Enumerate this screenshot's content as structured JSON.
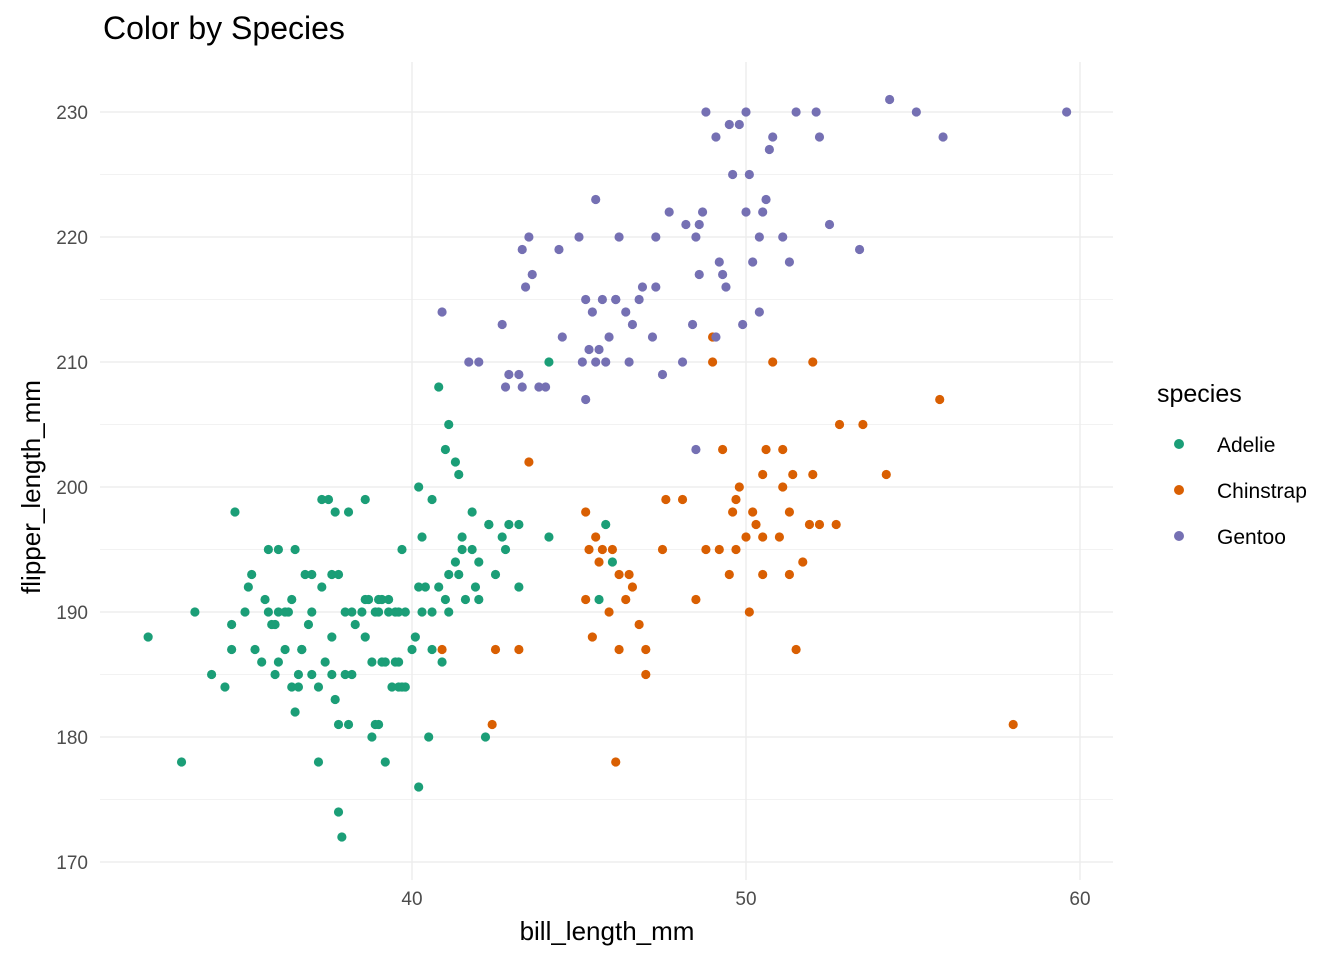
{
  "chart_data": {
    "type": "scatter",
    "title": "Color by Species",
    "xlabel": "bill_length_mm",
    "ylabel": "flipper_length_mm",
    "xlim": [
      31.0,
      61.0
    ],
    "ylim": [
      169.0,
      234.0
    ],
    "xticks": [
      40,
      50,
      60
    ],
    "yticks": [
      170,
      180,
      190,
      200,
      210,
      220,
      230
    ],
    "grid": true,
    "legend": {
      "title": "species",
      "position": "right"
    },
    "series": [
      {
        "name": "Adelie",
        "color": "#1b9e77",
        "points": [
          [
            32.1,
            188
          ],
          [
            33.1,
            178
          ],
          [
            33.5,
            190
          ],
          [
            34.0,
            185
          ],
          [
            34.4,
            184
          ],
          [
            34.6,
            187
          ],
          [
            34.6,
            189
          ],
          [
            34.7,
            198
          ],
          [
            35.0,
            190
          ],
          [
            35.1,
            192
          ],
          [
            35.2,
            193
          ],
          [
            35.3,
            187
          ],
          [
            35.5,
            186
          ],
          [
            35.6,
            191
          ],
          [
            35.7,
            190
          ],
          [
            35.7,
            195
          ],
          [
            35.9,
            185
          ],
          [
            35.9,
            189
          ],
          [
            36.0,
            186
          ],
          [
            36.0,
            190
          ],
          [
            36.0,
            195
          ],
          [
            36.2,
            187
          ],
          [
            36.3,
            190
          ],
          [
            36.4,
            184
          ],
          [
            36.5,
            182
          ],
          [
            36.5,
            195
          ],
          [
            36.6,
            184
          ],
          [
            36.6,
            185
          ],
          [
            36.7,
            187
          ],
          [
            36.8,
            193
          ],
          [
            36.9,
            189
          ],
          [
            37.0,
            185
          ],
          [
            37.0,
            193
          ],
          [
            37.2,
            178
          ],
          [
            37.3,
            192
          ],
          [
            37.3,
            199
          ],
          [
            37.5,
            199
          ],
          [
            37.6,
            185
          ],
          [
            37.7,
            183
          ],
          [
            37.7,
            198
          ],
          [
            37.8,
            174
          ],
          [
            37.8,
            181
          ],
          [
            37.8,
            193
          ],
          [
            37.9,
            172
          ],
          [
            38.1,
            181
          ],
          [
            38.1,
            198
          ],
          [
            38.2,
            185
          ],
          [
            38.6,
            191
          ],
          [
            38.6,
            199
          ],
          [
            38.8,
            180
          ],
          [
            38.9,
            181
          ],
          [
            39.0,
            181
          ],
          [
            39.0,
            190
          ],
          [
            39.2,
            178
          ],
          [
            39.2,
            186
          ],
          [
            39.3,
            190
          ],
          [
            39.5,
            186
          ],
          [
            39.6,
            184
          ],
          [
            39.7,
            184
          ],
          [
            39.8,
            184
          ],
          [
            40.1,
            188
          ],
          [
            40.2,
            176
          ],
          [
            40.2,
            200
          ],
          [
            40.3,
            196
          ],
          [
            40.5,
            180
          ],
          [
            40.6,
            187
          ],
          [
            40.6,
            199
          ],
          [
            40.8,
            208
          ],
          [
            41.0,
            203
          ],
          [
            41.1,
            205
          ],
          [
            41.3,
            202
          ],
          [
            41.4,
            201
          ],
          [
            41.5,
            195
          ],
          [
            41.6,
            191
          ],
          [
            41.8,
            198
          ],
          [
            42.0,
            191
          ],
          [
            42.2,
            180
          ],
          [
            42.3,
            197
          ],
          [
            42.7,
            196
          ],
          [
            42.8,
            195
          ],
          [
            43.2,
            192
          ],
          [
            44.1,
            196
          ],
          [
            44.1,
            210
          ],
          [
            45.6,
            191
          ],
          [
            45.8,
            197
          ],
          [
            46.0,
            194
          ],
          [
            35.8,
            189
          ],
          [
            36.2,
            190
          ],
          [
            36.4,
            191
          ],
          [
            37.0,
            190
          ],
          [
            37.4,
            186
          ],
          [
            37.6,
            188
          ],
          [
            38.0,
            190
          ],
          [
            38.3,
            189
          ],
          [
            38.5,
            190
          ],
          [
            38.6,
            188
          ],
          [
            38.8,
            186
          ],
          [
            39.0,
            191
          ],
          [
            39.1,
            191
          ],
          [
            39.3,
            191
          ],
          [
            39.5,
            190
          ],
          [
            39.6,
            186
          ],
          [
            39.8,
            190
          ],
          [
            40.0,
            187
          ],
          [
            40.3,
            190
          ],
          [
            40.4,
            192
          ],
          [
            40.6,
            190
          ],
          [
            40.8,
            192
          ],
          [
            41.0,
            191
          ],
          [
            41.1,
            193
          ],
          [
            41.3,
            194
          ],
          [
            41.4,
            193
          ],
          [
            41.5,
            196
          ],
          [
            41.8,
            195
          ],
          [
            41.9,
            192
          ],
          [
            42.0,
            194
          ],
          [
            42.3,
            197
          ],
          [
            42.5,
            193
          ],
          [
            42.9,
            197
          ],
          [
            43.2,
            197
          ],
          [
            36.7,
            187
          ],
          [
            37.2,
            184
          ],
          [
            37.6,
            193
          ],
          [
            38.0,
            185
          ],
          [
            38.7,
            191
          ],
          [
            39.1,
            186
          ],
          [
            39.4,
            184
          ],
          [
            39.7,
            195
          ],
          [
            40.2,
            192
          ],
          [
            40.9,
            186
          ],
          [
            41.1,
            190
          ],
          [
            38.2,
            190
          ],
          [
            38.9,
            190
          ],
          [
            39.6,
            190
          ]
        ]
      },
      {
        "name": "Chinstrap",
        "color": "#d95f02",
        "points": [
          [
            40.9,
            187
          ],
          [
            42.4,
            181
          ],
          [
            42.5,
            187
          ],
          [
            43.2,
            187
          ],
          [
            43.5,
            202
          ],
          [
            45.2,
            191
          ],
          [
            45.2,
            198
          ],
          [
            45.4,
            188
          ],
          [
            45.5,
            196
          ],
          [
            45.6,
            194
          ],
          [
            45.7,
            195
          ],
          [
            45.9,
            190
          ],
          [
            46.0,
            195
          ],
          [
            46.1,
            178
          ],
          [
            46.2,
            187
          ],
          [
            46.4,
            191
          ],
          [
            46.5,
            193
          ],
          [
            46.6,
            192
          ],
          [
            46.8,
            189
          ],
          [
            47.0,
            185
          ],
          [
            47.5,
            195
          ],
          [
            47.6,
            199
          ],
          [
            48.1,
            199
          ],
          [
            48.5,
            191
          ],
          [
            49.0,
            210
          ],
          [
            49.0,
            212
          ],
          [
            49.2,
            195
          ],
          [
            49.3,
            203
          ],
          [
            49.5,
            193
          ],
          [
            49.6,
            198
          ],
          [
            49.7,
            195
          ],
          [
            49.8,
            200
          ],
          [
            50.0,
            196
          ],
          [
            50.1,
            190
          ],
          [
            50.2,
            198
          ],
          [
            50.3,
            197
          ],
          [
            50.5,
            201
          ],
          [
            50.5,
            193
          ],
          [
            50.6,
            203
          ],
          [
            50.8,
            210
          ],
          [
            51.0,
            196
          ],
          [
            51.1,
            203
          ],
          [
            51.3,
            193
          ],
          [
            51.3,
            198
          ],
          [
            51.4,
            201
          ],
          [
            51.5,
            187
          ],
          [
            51.7,
            194
          ],
          [
            52.0,
            201
          ],
          [
            52.0,
            210
          ],
          [
            52.2,
            197
          ],
          [
            52.7,
            197
          ],
          [
            52.8,
            205
          ],
          [
            53.5,
            205
          ],
          [
            54.2,
            201
          ],
          [
            55.8,
            207
          ],
          [
            58.0,
            181
          ],
          [
            45.3,
            195
          ],
          [
            46.2,
            193
          ],
          [
            47.0,
            187
          ],
          [
            48.8,
            195
          ],
          [
            49.7,
            199
          ],
          [
            50.5,
            196
          ],
          [
            51.9,
            197
          ],
          [
            51.1,
            200
          ]
        ]
      },
      {
        "name": "Gentoo",
        "color": "#7570b3",
        "points": [
          [
            40.9,
            214
          ],
          [
            41.7,
            210
          ],
          [
            42.0,
            210
          ],
          [
            42.7,
            213
          ],
          [
            42.8,
            208
          ],
          [
            42.9,
            209
          ],
          [
            43.2,
            209
          ],
          [
            43.3,
            208
          ],
          [
            43.3,
            219
          ],
          [
            43.4,
            216
          ],
          [
            43.5,
            220
          ],
          [
            43.6,
            217
          ],
          [
            43.8,
            208
          ],
          [
            44.0,
            208
          ],
          [
            44.4,
            219
          ],
          [
            44.5,
            212
          ],
          [
            45.0,
            220
          ],
          [
            45.1,
            210
          ],
          [
            45.2,
            207
          ],
          [
            45.2,
            215
          ],
          [
            45.3,
            211
          ],
          [
            45.4,
            214
          ],
          [
            45.5,
            210
          ],
          [
            45.6,
            211
          ],
          [
            45.7,
            215
          ],
          [
            45.8,
            210
          ],
          [
            45.9,
            212
          ],
          [
            46.1,
            215
          ],
          [
            46.2,
            220
          ],
          [
            46.4,
            214
          ],
          [
            46.5,
            210
          ],
          [
            46.6,
            213
          ],
          [
            46.8,
            215
          ],
          [
            46.9,
            216
          ],
          [
            47.2,
            212
          ],
          [
            47.3,
            216
          ],
          [
            47.5,
            209
          ],
          [
            47.7,
            222
          ],
          [
            48.1,
            210
          ],
          [
            48.2,
            221
          ],
          [
            48.4,
            213
          ],
          [
            48.5,
            220
          ],
          [
            48.6,
            221
          ],
          [
            48.7,
            222
          ],
          [
            48.8,
            230
          ],
          [
            49.1,
            212
          ],
          [
            49.1,
            228
          ],
          [
            49.2,
            218
          ],
          [
            49.4,
            216
          ],
          [
            49.5,
            229
          ],
          [
            49.6,
            225
          ],
          [
            49.8,
            229
          ],
          [
            49.9,
            213
          ],
          [
            50.0,
            222
          ],
          [
            50.0,
            230
          ],
          [
            50.1,
            225
          ],
          [
            50.2,
            218
          ],
          [
            50.4,
            220
          ],
          [
            50.5,
            222
          ],
          [
            50.6,
            223
          ],
          [
            50.7,
            227
          ],
          [
            50.8,
            228
          ],
          [
            51.1,
            220
          ],
          [
            51.3,
            218
          ],
          [
            51.5,
            230
          ],
          [
            52.1,
            230
          ],
          [
            52.2,
            228
          ],
          [
            52.5,
            221
          ],
          [
            53.4,
            219
          ],
          [
            54.3,
            231
          ],
          [
            55.1,
            230
          ],
          [
            55.9,
            228
          ],
          [
            59.6,
            230
          ],
          [
            48.5,
            203
          ],
          [
            47.3,
            220
          ],
          [
            46.1,
            215
          ],
          [
            45.5,
            223
          ],
          [
            49.3,
            217
          ],
          [
            50.4,
            214
          ],
          [
            48.6,
            217
          ]
        ]
      }
    ]
  }
}
